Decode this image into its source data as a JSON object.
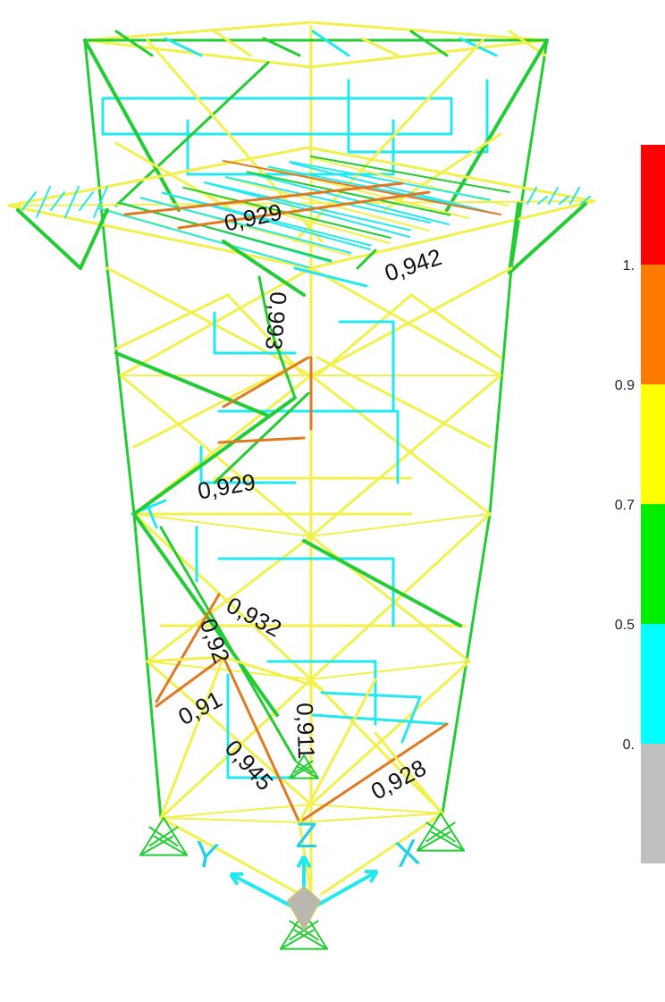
{
  "colors": {
    "cyan": "#22e8f0",
    "green": "#22cc33",
    "yellow": "#f2f04a",
    "orange": "#e07a22",
    "red": "#ee1111",
    "gray": "#bdbdbd",
    "legend_red": "#ff0000",
    "legend_orange": "#ff7a00",
    "legend_yellow": "#ffff00",
    "legend_green": "#00ee00",
    "legend_cyan": "#00ffff",
    "legend_gray": "#c0c0c0"
  },
  "legend": {
    "ticks": [
      "1.",
      "0.9",
      "0.7",
      "0.5",
      "0."
    ]
  },
  "member_labels": [
    "0,929",
    "0,942",
    "0,993",
    "0,929",
    "0,932",
    "0,92",
    "0,91",
    "0,945",
    "0,911",
    "0,928"
  ],
  "axes": {
    "y": "Y",
    "z": "Z",
    "x": "X"
  }
}
